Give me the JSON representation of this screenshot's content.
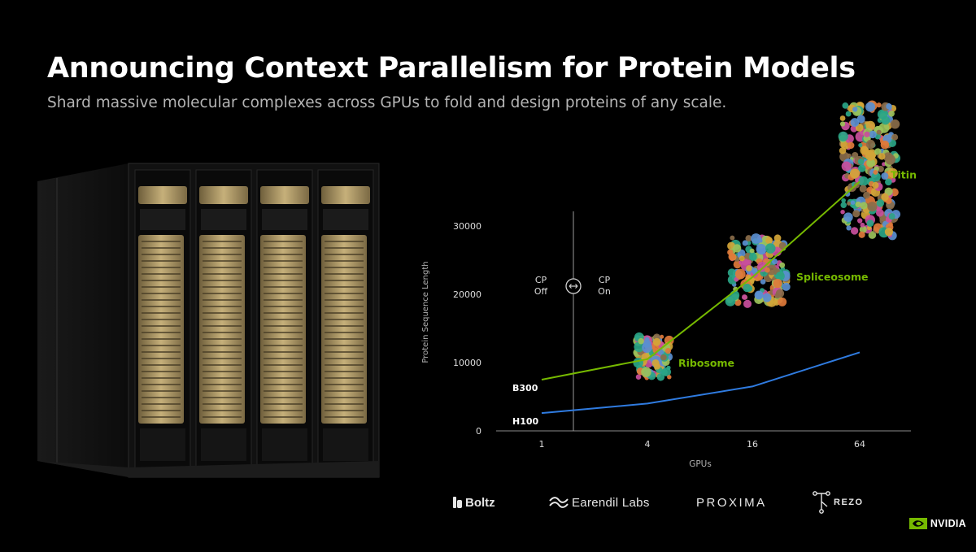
{
  "slide": {
    "title": "Announcing Context Parallelism for Protein Models",
    "subtitle": "Shard massive molecular complexes across GPUs to fold and design proteins of any scale."
  },
  "chart_data": {
    "type": "line",
    "xlabel": "GPUs",
    "ylabel": "Protein Sequence Length",
    "categories": [
      "1",
      "4",
      "16",
      "64"
    ],
    "yticks": [
      0,
      10000,
      20000,
      30000
    ],
    "ylim": [
      0,
      30000
    ],
    "grid": false,
    "series": [
      {
        "name": "B300",
        "color": "#76b900",
        "x": [
          1,
          4,
          16,
          64
        ],
        "values": [
          7500,
          10500,
          22500,
          36500
        ]
      },
      {
        "name": "H100",
        "color": "#2f7be0",
        "x": [
          1,
          4,
          16,
          64
        ],
        "values": [
          2600,
          4000,
          6500,
          11500
        ]
      }
    ],
    "annotations": [
      {
        "label": "Ribosome",
        "x": 4,
        "y": 10500
      },
      {
        "label": "Spliceosome",
        "x": 16,
        "y": 22500
      },
      {
        "label": "Titin",
        "x": 64,
        "y": 36500
      }
    ],
    "cp_divider": {
      "off_line1": "CP",
      "off_line2": "Off",
      "on_line1": "CP",
      "on_line2": "On"
    }
  },
  "logos": {
    "boltz": "Boltz",
    "earendil": "Earendil Labs",
    "proxima": "PROXIMA",
    "rezo": "REZO",
    "nvidia": "NVIDIA"
  },
  "colors": {
    "background": "#000000",
    "accent_green": "#76b900",
    "accent_blue": "#2f7be0",
    "rack_gold": "#b8a26e"
  }
}
